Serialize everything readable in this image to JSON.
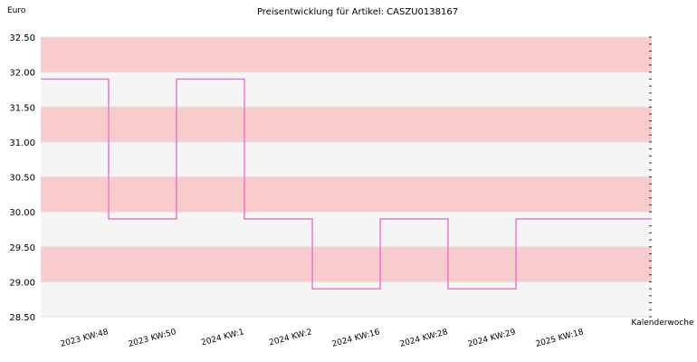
{
  "chart_data": {
    "type": "line",
    "title": "Preisentwicklung für Artikel: CASZU0138167",
    "ylabel": "Euro",
    "xlabel": "Kalenderwoche",
    "ylim": [
      28.5,
      32.5
    ],
    "yticks": [
      "28.50",
      "29.00",
      "29.50",
      "30.00",
      "30.50",
      "31.00",
      "31.50",
      "32.00",
      "32.50"
    ],
    "grid": true,
    "legend": "none",
    "band_colors": [
      "#f5f5f5",
      "#f8cccc"
    ],
    "line_color": "#ee77cc",
    "step": true,
    "categories": [
      "2023 KW:48",
      "2023 KW:50",
      "2024 KW:1",
      "2024 KW:2",
      "2024 KW:16",
      "2024 KW:28",
      "2024 KW:29",
      "2025 KW:18"
    ],
    "series": [
      {
        "values": [
          31.9,
          29.9,
          31.9,
          29.9,
          28.9,
          29.9,
          28.9,
          29.9
        ]
      }
    ]
  }
}
